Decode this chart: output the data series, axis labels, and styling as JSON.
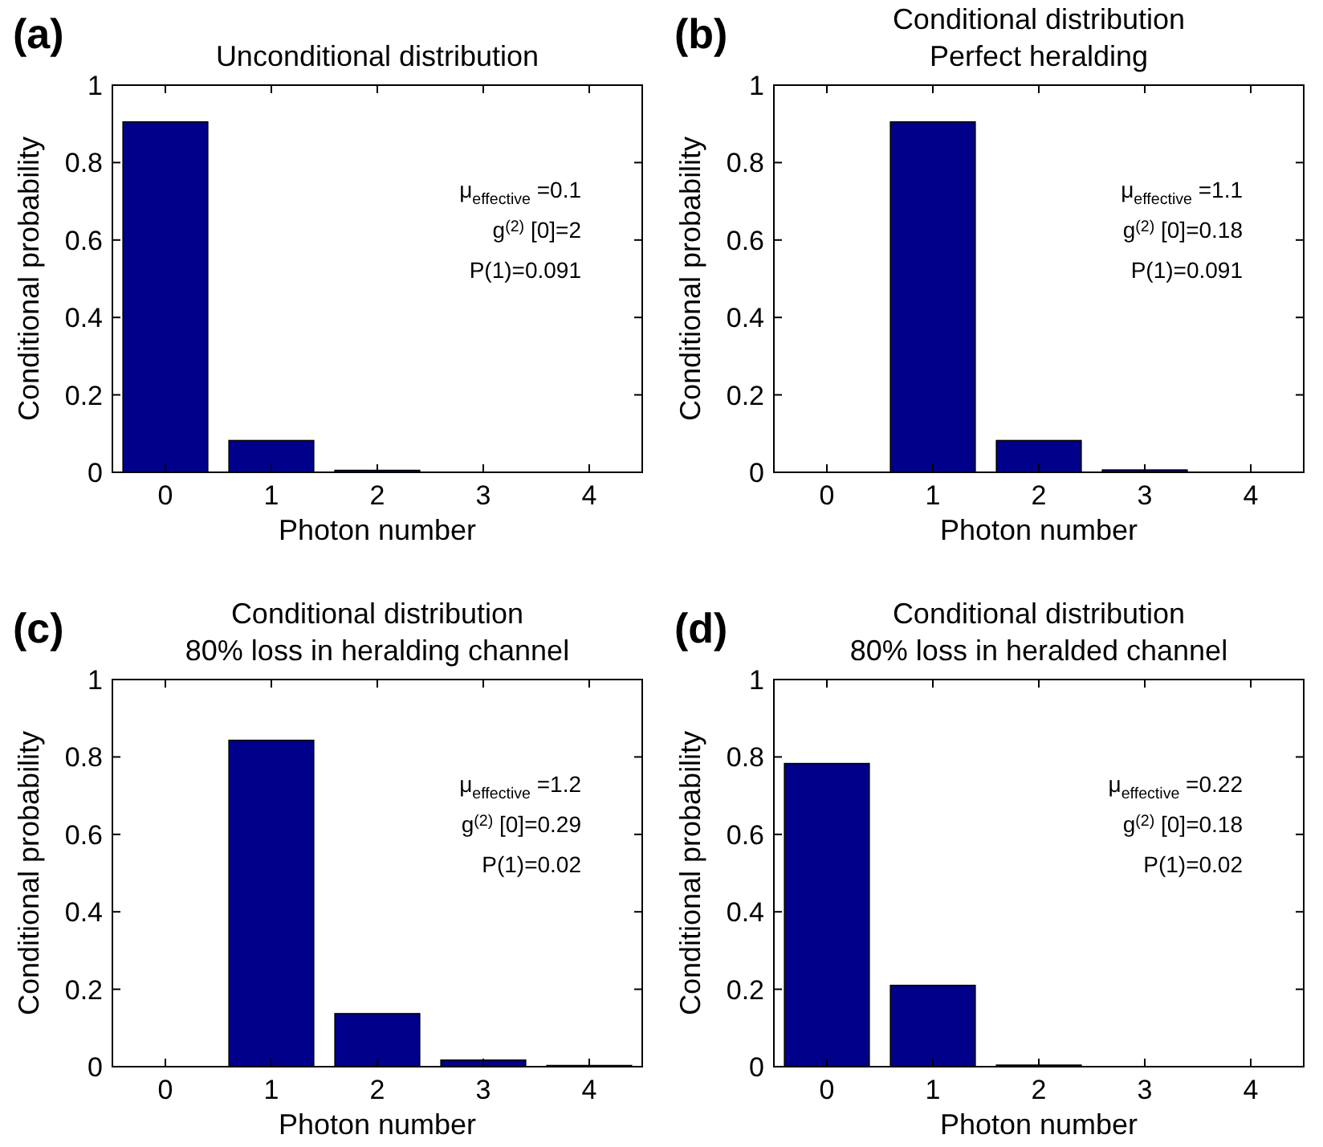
{
  "chart_data": [
    {
      "type": "bar",
      "title": "Unconditional distribution",
      "xlabel": "Photon number",
      "ylabel": "Conditional probability",
      "categories": [
        "0",
        "1",
        "2",
        "3",
        "4"
      ],
      "values": [
        0.905,
        0.082,
        0.005,
        0,
        0
      ],
      "color": "#00008b",
      "ylim": [
        0,
        1
      ],
      "yticks": [
        0,
        0.2,
        0.4,
        0.6,
        0.8,
        1
      ],
      "annotations": [
        "(a)",
        "μ$_{effective}$ =0.1",
        "g$^{(2)}$ [0]=2",
        "P(1)=0.091"
      ]
    },
    {
      "type": "bar",
      "title": "Conditional distribution",
      "subtitle": "Perfect heralding",
      "xlabel": "Photon number",
      "ylabel": "Conditional probability",
      "categories": [
        "0",
        "1",
        "2",
        "3",
        "4"
      ],
      "values": [
        0,
        0.905,
        0.082,
        0.006,
        0
      ],
      "color": "#00008b",
      "ylim": [
        0,
        1
      ],
      "yticks": [
        0,
        0.2,
        0.4,
        0.6,
        0.8,
        1
      ],
      "annotations": [
        "(b)",
        "μ$_{effective}$ =1.1",
        "g$^{(2)}$ [0]=0.18",
        "P(1)=0.091"
      ]
    },
    {
      "type": "bar",
      "title": "Conditional distribution",
      "subtitle": "80% loss in heralding channel",
      "xlabel": "Photon number",
      "ylabel": "Conditional probability",
      "categories": [
        "0",
        "1",
        "2",
        "3",
        "4"
      ],
      "values": [
        0,
        0.843,
        0.137,
        0.017,
        0.003
      ],
      "color": "#00008b",
      "ylim": [
        0,
        1
      ],
      "yticks": [
        0,
        0.2,
        0.4,
        0.6,
        0.8,
        1
      ],
      "annotations": [
        "(c)",
        "μ$_{effective}$ =1.2",
        "g$^{(2)}$ [0]=0.29",
        "P(1)=0.02"
      ]
    },
    {
      "type": "bar",
      "title": "Conditional distribution",
      "subtitle": "80% loss in heralded channel",
      "xlabel": "Photon number",
      "ylabel": "Conditional probability",
      "categories": [
        "0",
        "1",
        "2",
        "3",
        "4"
      ],
      "values": [
        0.783,
        0.21,
        0.004,
        0,
        0
      ],
      "color": "#00008b",
      "ylim": [
        0,
        1
      ],
      "yticks": [
        0,
        0.2,
        0.4,
        0.6,
        0.8,
        1
      ],
      "annotations": [
        "(d)",
        "μ$_{effective}$ =0.22",
        "g$^{(2)}$ [0]=0.18",
        "P(1)=0.02"
      ]
    }
  ]
}
